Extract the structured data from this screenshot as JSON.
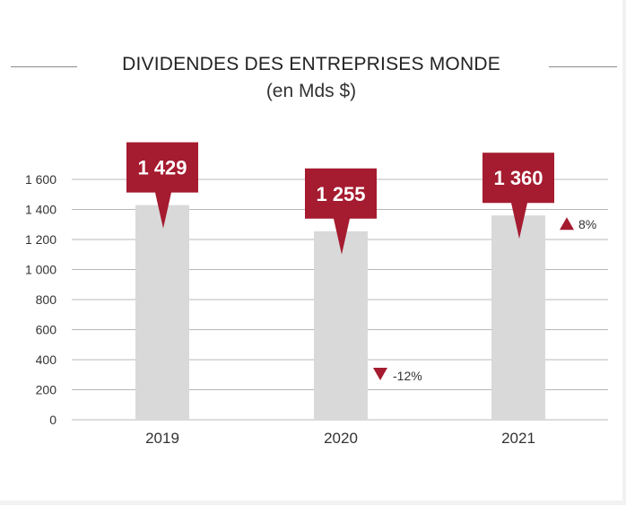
{
  "chart_data": {
    "type": "bar",
    "title": "DIVIDENDES DES ENTREPRISES MONDE",
    "subtitle": "(en Mds $)",
    "categories": [
      "2019",
      "2020",
      "2021"
    ],
    "values": [
      1429,
      1255,
      1360
    ],
    "data_labels": [
      "1 429",
      "1 255",
      "1 360"
    ],
    "changes": [
      {
        "category": "2020",
        "label": "-12%",
        "direction": "down"
      },
      {
        "category": "2021",
        "label": "8%",
        "direction": "up"
      }
    ],
    "y_ticks": [
      0,
      200,
      400,
      600,
      800,
      1000,
      1200,
      1400,
      1600
    ],
    "y_tick_labels": [
      "0",
      "200",
      "400",
      "600",
      "800",
      "1 000",
      "1 200",
      "1 400",
      "1 600"
    ],
    "ylim": [
      0,
      1600
    ],
    "grid": true,
    "xlabel": "",
    "ylabel": "",
    "colors": {
      "bar": "#d9d9da",
      "callout": "#a51b2f",
      "grid": "#b8b8b8"
    }
  }
}
